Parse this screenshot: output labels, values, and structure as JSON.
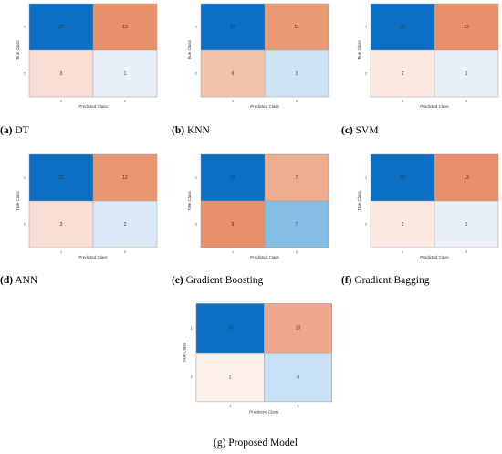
{
  "chart_data": [
    {
      "type": "heatmap",
      "panel_label": "(a)",
      "caption": "DT",
      "rows": [
        "1",
        "2"
      ],
      "cols": [
        "1",
        "2"
      ],
      "xlabel": "Predicted Class",
      "ylabel": "True Class",
      "values": [
        [
          22,
          13
        ],
        [
          3,
          1
        ]
      ],
      "colors": [
        [
          "#0b6fc6",
          "#e8906a"
        ],
        [
          "#f8ddd3",
          "#e9f0f8"
        ]
      ]
    },
    {
      "type": "heatmap",
      "panel_label": "(b)",
      "caption": "KNN",
      "rows": [
        "1",
        "2"
      ],
      "cols": [
        "1",
        "2"
      ],
      "xlabel": "Predicted Class",
      "ylabel": "True Class",
      "values": [
        [
          19,
          11
        ],
        [
          6,
          3
        ]
      ],
      "colors": [
        [
          "#0b6fc6",
          "#eb9a76"
        ],
        [
          "#f2c4ae",
          "#cde3f3"
        ]
      ]
    },
    {
      "type": "heatmap",
      "panel_label": "(c)",
      "caption": "SVM",
      "rows": [
        "1",
        "2"
      ],
      "cols": [
        "1",
        "2"
      ],
      "xlabel": "Predicted Class",
      "ylabel": "True Class",
      "values": [
        [
          23,
          13
        ],
        [
          2,
          1
        ]
      ],
      "colors": [
        [
          "#0b6fc6",
          "#e8906a"
        ],
        [
          "#fbe9e2",
          "#e9f0f8"
        ]
      ]
    },
    {
      "type": "heatmap",
      "panel_label": "(d)",
      "caption": "ANN",
      "rows": [
        "1",
        "2"
      ],
      "cols": [
        "1",
        "2"
      ],
      "xlabel": "Predicted Class",
      "ylabel": "True Class",
      "values": [
        [
          22,
          12
        ],
        [
          3,
          2
        ]
      ],
      "colors": [
        [
          "#0b6fc6",
          "#e9966f"
        ],
        [
          "#f8ddd3",
          "#dae9f5"
        ]
      ]
    },
    {
      "type": "heatmap",
      "panel_label": "(e)",
      "caption": "Gradient Boosting",
      "rows": [
        "1",
        "2"
      ],
      "cols": [
        "1",
        "2"
      ],
      "xlabel": "Predicted Class",
      "ylabel": "True Class",
      "values": [
        [
          16,
          7
        ],
        [
          9,
          7
        ]
      ],
      "colors": [
        [
          "#0b6fc6",
          "#edac8e"
        ],
        [
          "#e8906a",
          "#86bde2"
        ]
      ]
    },
    {
      "type": "heatmap",
      "panel_label": "(f)",
      "caption": "Gradient Bagging",
      "rows": [
        "1",
        "2"
      ],
      "cols": [
        "1",
        "2"
      ],
      "xlabel": "Predicted Class",
      "ylabel": "True Class",
      "values": [
        [
          23,
          13
        ],
        [
          2,
          1
        ]
      ],
      "colors": [
        [
          "#0b6fc6",
          "#e8906a"
        ],
        [
          "#fbe9e2",
          "#e9f0f8"
        ]
      ]
    },
    {
      "type": "heatmap",
      "panel_label": "(g)",
      "caption": "Proposed Model",
      "rows": [
        "1",
        "2"
      ],
      "cols": [
        "1",
        "2"
      ],
      "xlabel": "Predicted Class",
      "ylabel": "True Class",
      "values": [
        [
          24,
          10
        ],
        [
          1,
          4
        ]
      ],
      "colors": [
        [
          "#0b6fc6",
          "#eda78a"
        ],
        [
          "#fcf0ea",
          "#c8e0f3"
        ]
      ]
    }
  ]
}
